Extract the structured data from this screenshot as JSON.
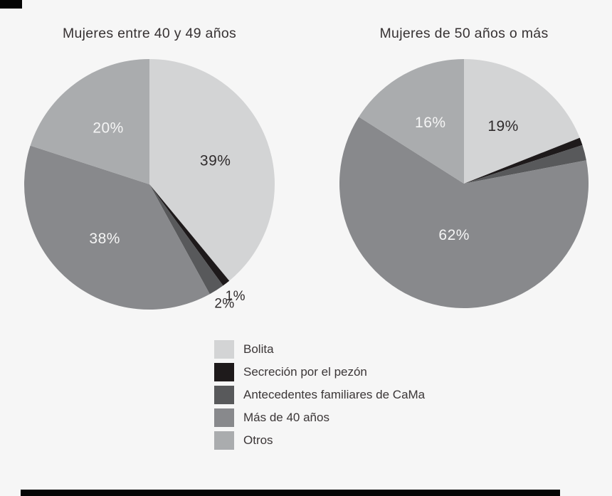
{
  "chart_data": [
    {
      "type": "pie",
      "title": "Mujeres entre 40 y 49 años",
      "labels": [
        "Bolita",
        "Secreción por el pezón",
        "Antecedentes familiares de CaMa",
        "Más de 40 años",
        "Otros"
      ],
      "values": [
        39,
        1,
        2,
        38,
        20
      ],
      "slice_labels": [
        "39%",
        "1%",
        "2%",
        "38%",
        "20%"
      ],
      "slice_label_placement": [
        "inside-dark",
        "outside",
        "outside",
        "inside-light",
        "inside-light"
      ],
      "start_angle_deg": 0,
      "direction": "clockwise",
      "legend_position": "bottom-shared"
    },
    {
      "type": "pie",
      "title": "Mujeres de 50 años o más",
      "labels": [
        "Bolita",
        "Secreción por el pezón",
        "Antecedentes familiares de CaMa",
        "Más de 40 años",
        "Otros"
      ],
      "values": [
        19,
        1,
        2,
        62,
        16
      ],
      "slice_labels": [
        "19%",
        "",
        "",
        "62%",
        "16%"
      ],
      "slice_label_placement": [
        "inside-dark",
        "none",
        "none",
        "inside-light",
        "inside-light"
      ],
      "start_angle_deg": 0,
      "direction": "clockwise",
      "legend_position": "bottom-shared"
    }
  ],
  "legend": {
    "items": [
      {
        "label": "Bolita",
        "color": "#d3d4d5"
      },
      {
        "label": "Secreción por el pezón",
        "color": "#1e1a1b"
      },
      {
        "label": "Antecedentes familiares de CaMa",
        "color": "#58595b"
      },
      {
        "label": "Más de 40 años",
        "color": "#88898c"
      },
      {
        "label": "Otros",
        "color": "#aaacae"
      }
    ]
  },
  "colors": {
    "background": "#f6f6f6",
    "slice_palette": [
      "#d3d4d5",
      "#1e1a1b",
      "#58595b",
      "#88898c",
      "#aaacae"
    ],
    "title_text": "#373233",
    "label_dark": "#2f2b2c",
    "label_light": "#f5f5f5",
    "legend_text": "#3b3637",
    "artifact_black": "#050505"
  }
}
